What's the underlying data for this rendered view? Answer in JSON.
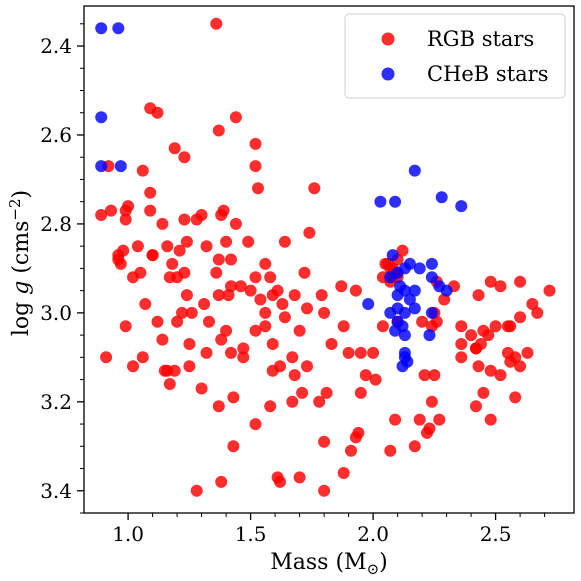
{
  "chart_data": {
    "type": "scatter",
    "xlabel": "Mass (M",
    "xlabel_sub": "⊙",
    "xlabel_close": ")",
    "ylabel": "log ",
    "ylabel_g": "g",
    "ylabel_unit": " (cms",
    "ylabel_sup": "−2",
    "ylabel_close": ")",
    "xlim": [
      0.82,
      2.82
    ],
    "ylim": [
      2.31,
      3.45
    ],
    "y_inverted": true,
    "grid": false,
    "legend_position": "top-right",
    "x_ticks": [
      1.0,
      1.5,
      2.0,
      2.5
    ],
    "x_tick_labels": [
      "1.0",
      "1.5",
      "2.0",
      "2.5"
    ],
    "y_ticks": [
      2.4,
      2.6,
      2.8,
      3.0,
      3.2,
      3.4
    ],
    "y_tick_labels": [
      "2.4",
      "2.6",
      "2.8",
      "3.0",
      "3.2",
      "3.4"
    ],
    "series": [
      {
        "name": "RGB stars",
        "color": "#ff0000",
        "points": [
          [
            1.36,
            2.35
          ],
          [
            0.92,
            2.67
          ],
          [
            1.09,
            2.54
          ],
          [
            1.12,
            2.55
          ],
          [
            1.44,
            2.56
          ],
          [
            1.37,
            2.59
          ],
          [
            1.52,
            2.62
          ],
          [
            1.23,
            2.65
          ],
          [
            1.19,
            2.63
          ],
          [
            1.52,
            2.67
          ],
          [
            1.06,
            2.68
          ],
          [
            1.53,
            2.72
          ],
          [
            1.76,
            2.72
          ],
          [
            1.09,
            2.73
          ],
          [
            1.09,
            2.77
          ],
          [
            0.93,
            2.77
          ],
          [
            0.89,
            2.78
          ],
          [
            0.99,
            2.77
          ],
          [
            1.39,
            2.77
          ],
          [
            1.0,
            2.76
          ],
          [
            0.99,
            2.79
          ],
          [
            1.14,
            2.8
          ],
          [
            1.23,
            2.79
          ],
          [
            1.3,
            2.78
          ],
          [
            1.28,
            2.79
          ],
          [
            1.44,
            2.8
          ],
          [
            1.38,
            2.78
          ],
          [
            1.16,
            2.85
          ],
          [
            1.32,
            2.85
          ],
          [
            1.4,
            2.84
          ],
          [
            1.49,
            2.84
          ],
          [
            1.74,
            2.82
          ],
          [
            1.64,
            2.84
          ],
          [
            1.24,
            2.84
          ],
          [
            0.98,
            2.86
          ],
          [
            0.96,
            2.87
          ],
          [
            1.04,
            2.85
          ],
          [
            1.1,
            2.87
          ],
          [
            1.1,
            2.87
          ],
          [
            1.21,
            2.86
          ],
          [
            0.96,
            2.88
          ],
          [
            1.37,
            2.88
          ],
          [
            1.42,
            2.88
          ],
          [
            1.56,
            2.89
          ],
          [
            1.72,
            2.91
          ],
          [
            0.97,
            2.89
          ],
          [
            1.18,
            2.89
          ],
          [
            1.23,
            2.91
          ],
          [
            1.36,
            2.91
          ],
          [
            1.17,
            2.92
          ],
          [
            1.2,
            2.92
          ],
          [
            1.52,
            2.92
          ],
          [
            1.42,
            2.94
          ],
          [
            1.05,
            2.91
          ],
          [
            1.02,
            2.92
          ],
          [
            1.58,
            2.92
          ],
          [
            1.46,
            2.94
          ],
          [
            1.37,
            2.96
          ],
          [
            1.24,
            2.96
          ],
          [
            1.07,
            2.98
          ],
          [
            1.61,
            2.95
          ],
          [
            1.5,
            2.95
          ],
          [
            1.68,
            2.96
          ],
          [
            1.59,
            2.96
          ],
          [
            1.79,
            2.96
          ],
          [
            1.87,
            2.94
          ],
          [
            1.93,
            2.95
          ],
          [
            2.06,
            2.89
          ],
          [
            2.07,
            2.9
          ],
          [
            2.1,
            2.92
          ],
          [
            2.08,
            2.9
          ],
          [
            2.09,
            2.91
          ],
          [
            2.07,
            2.93
          ],
          [
            2.08,
            2.92
          ],
          [
            2.1,
            2.88
          ],
          [
            2.12,
            2.86
          ],
          [
            2.05,
            2.89
          ],
          [
            2.04,
            2.92
          ],
          [
            1.31,
            2.98
          ],
          [
            1.41,
            2.96
          ],
          [
            1.54,
            2.97
          ],
          [
            1.63,
            2.98
          ],
          [
            1.73,
            2.99
          ],
          [
            1.8,
            3.0
          ],
          [
            1.64,
            3.01
          ],
          [
            1.56,
            3.0
          ],
          [
            1.22,
            3.0
          ],
          [
            1.26,
            3.0
          ],
          [
            1.33,
            3.02
          ],
          [
            1.12,
            3.02
          ],
          [
            1.2,
            3.02
          ],
          [
            0.99,
            3.03
          ],
          [
            1.4,
            3.04
          ],
          [
            1.52,
            3.04
          ],
          [
            1.56,
            3.03
          ],
          [
            1.7,
            3.04
          ],
          [
            1.88,
            3.03
          ],
          [
            2.04,
            3.03
          ],
          [
            2.1,
            3.02
          ],
          [
            2.25,
            3.0
          ],
          [
            2.26,
            3.02
          ],
          [
            2.2,
            3.02
          ],
          [
            2.29,
            2.97
          ],
          [
            2.24,
            3.03
          ],
          [
            2.36,
            3.03
          ],
          [
            2.4,
            3.05
          ],
          [
            2.45,
            3.04
          ],
          [
            2.55,
            3.03
          ],
          [
            2.5,
            3.03
          ],
          [
            2.47,
            3.05
          ],
          [
            2.6,
            3.01
          ],
          [
            2.67,
            3.0
          ],
          [
            2.56,
            3.03
          ],
          [
            2.65,
            2.98
          ],
          [
            2.72,
            2.95
          ],
          [
            2.43,
            2.96
          ],
          [
            2.52,
            2.94
          ],
          [
            2.6,
            2.93
          ],
          [
            2.48,
            2.93
          ],
          [
            2.26,
            2.93
          ],
          [
            2.33,
            2.94
          ],
          [
            1.14,
            3.06
          ],
          [
            1.25,
            3.07
          ],
          [
            1.38,
            3.06
          ],
          [
            1.47,
            3.08
          ],
          [
            1.59,
            3.07
          ],
          [
            1.83,
            3.07
          ],
          [
            1.9,
            3.09
          ],
          [
            1.95,
            3.09
          ],
          [
            2.0,
            3.09
          ],
          [
            1.32,
            3.09
          ],
          [
            1.06,
            3.1
          ],
          [
            0.91,
            3.1
          ],
          [
            1.02,
            3.12
          ],
          [
            1.25,
            3.12
          ],
          [
            1.16,
            3.13
          ],
          [
            1.15,
            3.13
          ],
          [
            1.19,
            3.13
          ],
          [
            1.62,
            3.12
          ],
          [
            1.67,
            3.1
          ],
          [
            1.73,
            3.12
          ],
          [
            1.59,
            3.13
          ],
          [
            1.47,
            3.1
          ],
          [
            1.68,
            3.14
          ],
          [
            1.42,
            3.09
          ],
          [
            1.97,
            3.14
          ],
          [
            2.01,
            3.15
          ],
          [
            2.21,
            3.14
          ],
          [
            2.25,
            3.14
          ],
          [
            2.36,
            3.1
          ],
          [
            2.42,
            3.08
          ],
          [
            2.44,
            3.07
          ],
          [
            2.43,
            3.12
          ],
          [
            2.48,
            3.13
          ],
          [
            2.52,
            3.14
          ],
          [
            2.55,
            3.09
          ],
          [
            2.56,
            3.11
          ],
          [
            2.6,
            3.12
          ],
          [
            2.58,
            3.1
          ],
          [
            2.63,
            3.09
          ],
          [
            2.36,
            3.07
          ],
          [
            2.42,
            3.08
          ],
          [
            1.17,
            3.16
          ],
          [
            1.3,
            3.17
          ],
          [
            1.37,
            3.21
          ],
          [
            1.43,
            3.19
          ],
          [
            1.52,
            3.25
          ],
          [
            1.58,
            3.21
          ],
          [
            1.67,
            3.2
          ],
          [
            1.78,
            3.2
          ],
          [
            1.81,
            3.18
          ],
          [
            1.95,
            3.18
          ],
          [
            2.24,
            3.2
          ],
          [
            2.27,
            3.24
          ],
          [
            2.23,
            3.26
          ],
          [
            2.22,
            3.27
          ],
          [
            1.71,
            3.18
          ],
          [
            2.09,
            3.24
          ],
          [
            2.19,
            3.24
          ],
          [
            2.45,
            3.18
          ],
          [
            2.58,
            3.19
          ],
          [
            2.42,
            3.21
          ],
          [
            2.48,
            3.24
          ],
          [
            1.43,
            3.3
          ],
          [
            1.8,
            3.29
          ],
          [
            1.93,
            3.28
          ],
          [
            1.91,
            3.31
          ],
          [
            2.17,
            3.3
          ],
          [
            1.94,
            3.27
          ],
          [
            1.8,
            3.4
          ],
          [
            1.61,
            3.37
          ],
          [
            1.62,
            3.38
          ],
          [
            1.7,
            3.37
          ],
          [
            1.28,
            3.4
          ],
          [
            1.38,
            3.38
          ],
          [
            1.88,
            3.36
          ],
          [
            2.07,
            3.31
          ]
        ]
      },
      {
        "name": "CHeB stars",
        "color": "#0000ff",
        "points": [
          [
            0.89,
            2.36
          ],
          [
            0.96,
            2.36
          ],
          [
            0.89,
            2.56
          ],
          [
            0.89,
            2.67
          ],
          [
            0.97,
            2.67
          ],
          [
            2.03,
            2.75
          ],
          [
            2.09,
            2.75
          ],
          [
            2.17,
            2.68
          ],
          [
            2.28,
            2.74
          ],
          [
            2.36,
            2.76
          ],
          [
            2.08,
            2.87
          ],
          [
            2.13,
            2.9
          ],
          [
            2.1,
            2.91
          ],
          [
            2.07,
            2.92
          ],
          [
            2.15,
            2.89
          ],
          [
            2.19,
            2.9
          ],
          [
            2.24,
            2.89
          ],
          [
            2.24,
            2.92
          ],
          [
            2.11,
            2.94
          ],
          [
            2.13,
            2.95
          ],
          [
            2.17,
            2.95
          ],
          [
            2.27,
            2.94
          ],
          [
            2.3,
            2.95
          ],
          [
            2.1,
            2.96
          ],
          [
            2.15,
            2.97
          ],
          [
            1.98,
            2.98
          ],
          [
            2.07,
            3.0
          ],
          [
            2.1,
            2.99
          ],
          [
            2.13,
            3.0
          ],
          [
            2.17,
            2.99
          ],
          [
            2.24,
            3.0
          ],
          [
            2.1,
            3.02
          ],
          [
            2.12,
            3.03
          ],
          [
            2.09,
            3.04
          ],
          [
            2.13,
            3.05
          ],
          [
            2.23,
            3.05
          ],
          [
            2.13,
            3.1
          ],
          [
            2.14,
            3.11
          ],
          [
            2.12,
            3.12
          ],
          [
            2.13,
            3.09
          ]
        ]
      }
    ]
  }
}
